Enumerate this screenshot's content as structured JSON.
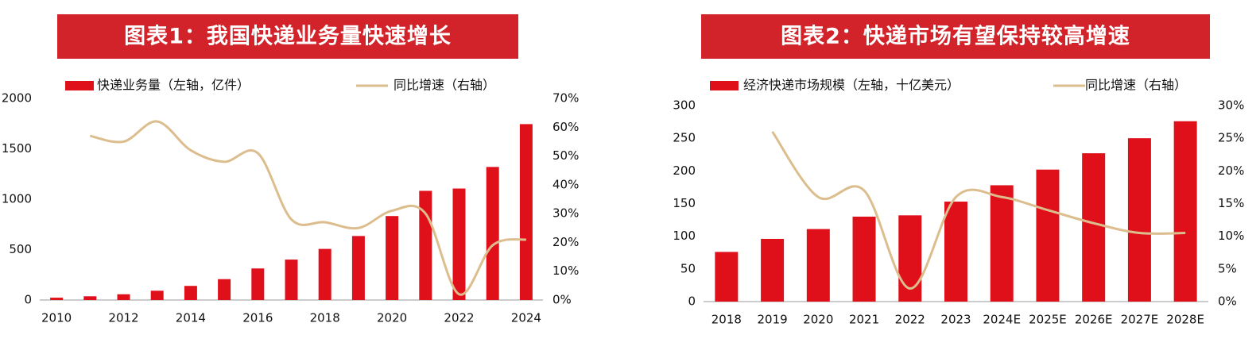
{
  "chart_data": [
    {
      "type": "combo",
      "title": "图表1：我国快递业务量快速增长",
      "categories": [
        "2010",
        null,
        "2012",
        null,
        "2014",
        null,
        "2016",
        null,
        "2018",
        null,
        "2020",
        null,
        "2022",
        null,
        "2024"
      ],
      "series": [
        {
          "name": "快递业务量（左轴，亿件）",
          "type": "bar",
          "color": "#e0101b",
          "values": [
            23,
            37,
            57,
            92,
            140,
            207,
            313,
            401,
            507,
            635,
            833,
            1083,
            1106,
            1320,
            1745
          ]
        },
        {
          "name": "同比增速（右轴）",
          "type": "line",
          "axis": "y2",
          "color": "#dcbd8e",
          "values": [
            null,
            57,
            55,
            62,
            52,
            48,
            51,
            28,
            27,
            25,
            31,
            30,
            2,
            19,
            21
          ]
        }
      ],
      "ylim": [
        0,
        2000
      ],
      "yticks": [
        0,
        500,
        1000,
        1500,
        2000
      ],
      "y2lim": [
        0,
        70
      ],
      "y2ticks": [
        {
          "value": 0,
          "label": "0%"
        },
        {
          "value": 10,
          "label": "10%"
        },
        {
          "value": 20,
          "label": "20%"
        },
        {
          "value": 30,
          "label": "30%"
        },
        {
          "value": 40,
          "label": "40%"
        },
        {
          "value": 50,
          "label": "50%"
        },
        {
          "value": 60,
          "label": "60%"
        },
        {
          "value": 70,
          "label": "70%"
        }
      ],
      "grid": false,
      "legend": "top"
    },
    {
      "type": "combo",
      "title": "图表2：快递市场有望保持较高增速",
      "categories": [
        "2018",
        "2019",
        "2020",
        "2021",
        "2022",
        "2023",
        "2024E",
        "2025E",
        "2026E",
        "2027E",
        "2028E"
      ],
      "series": [
        {
          "name": "经济快递市场规模（左轴，十亿美元）",
          "type": "bar",
          "color": "#e0101b",
          "values": [
            76,
            96,
            111,
            130,
            132,
            153,
            178,
            202,
            227,
            250,
            276
          ]
        },
        {
          "name": "同比增速（右轴）",
          "type": "line",
          "axis": "y2",
          "color": "#dcbd8e",
          "values": [
            null,
            26,
            16,
            17,
            2,
            16,
            16,
            14,
            12,
            10.5,
            10.5
          ]
        }
      ],
      "ylim": [
        0,
        300
      ],
      "yticks": [
        0,
        50,
        100,
        150,
        200,
        250,
        300
      ],
      "y2lim": [
        0,
        30
      ],
      "y2ticks": [
        {
          "value": 0,
          "label": "0%"
        },
        {
          "value": 5,
          "label": "5%"
        },
        {
          "value": 10,
          "label": "10%"
        },
        {
          "value": 15,
          "label": "15%"
        },
        {
          "value": 20,
          "label": "20%"
        },
        {
          "value": 25,
          "label": "25%"
        },
        {
          "value": 30,
          "label": "30%"
        }
      ],
      "grid": false,
      "legend": "top"
    }
  ]
}
